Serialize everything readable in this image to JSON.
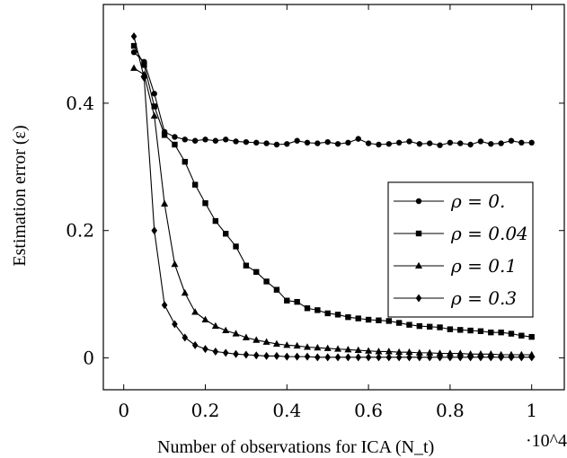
{
  "chart_data": {
    "type": "line",
    "xlabel": "Number of observations for ICA (N_t)",
    "x_scale_label": "·10^4",
    "ylabel": "Estimation error (ε)",
    "xlim": [
      -0.05,
      1.08
    ],
    "ylim": [
      -0.05,
      0.555
    ],
    "x_ticks": [
      0,
      0.2,
      0.4,
      0.6,
      0.8,
      1
    ],
    "x_tick_labels": [
      "0",
      "0.2",
      "0.4",
      "0.6",
      "0.8",
      "1"
    ],
    "y_ticks": [
      0,
      0.2,
      0.4
    ],
    "y_tick_labels": [
      "0",
      "0.2",
      "0.4"
    ],
    "grid": false,
    "legend_position": "right-center",
    "x": [
      0.025,
      0.05,
      0.075,
      0.1,
      0.125,
      0.15,
      0.175,
      0.2,
      0.225,
      0.25,
      0.275,
      0.3,
      0.325,
      0.35,
      0.375,
      0.4,
      0.425,
      0.45,
      0.475,
      0.5,
      0.525,
      0.55,
      0.575,
      0.6,
      0.625,
      0.65,
      0.675,
      0.7,
      0.725,
      0.75,
      0.775,
      0.8,
      0.825,
      0.85,
      0.875,
      0.9,
      0.925,
      0.95,
      0.975,
      1.0
    ],
    "series": [
      {
        "name": "ρ = 0.",
        "marker": "circle",
        "values": [
          0.48,
          0.465,
          0.415,
          0.355,
          0.347,
          0.343,
          0.341,
          0.343,
          0.341,
          0.343,
          0.34,
          0.339,
          0.338,
          0.337,
          0.335,
          0.336,
          0.341,
          0.338,
          0.337,
          0.339,
          0.336,
          0.338,
          0.344,
          0.337,
          0.335,
          0.336,
          0.338,
          0.34,
          0.336,
          0.337,
          0.334,
          0.338,
          0.337,
          0.335,
          0.34,
          0.336,
          0.337,
          0.341,
          0.338,
          0.338
        ]
      },
      {
        "name": "ρ = 0.04",
        "marker": "square",
        "values": [
          0.49,
          0.46,
          0.395,
          0.35,
          0.335,
          0.308,
          0.272,
          0.243,
          0.215,
          0.195,
          0.175,
          0.145,
          0.135,
          0.12,
          0.107,
          0.09,
          0.088,
          0.078,
          0.075,
          0.07,
          0.068,
          0.064,
          0.062,
          0.06,
          0.059,
          0.058,
          0.055,
          0.052,
          0.05,
          0.049,
          0.048,
          0.045,
          0.044,
          0.043,
          0.042,
          0.04,
          0.04,
          0.038,
          0.035,
          0.033
        ]
      },
      {
        "name": "ρ = 0.1",
        "marker": "triangle",
        "values": [
          0.455,
          0.445,
          0.38,
          0.242,
          0.147,
          0.102,
          0.072,
          0.06,
          0.05,
          0.043,
          0.038,
          0.032,
          0.028,
          0.025,
          0.022,
          0.02,
          0.019,
          0.017,
          0.016,
          0.015,
          0.014,
          0.013,
          0.012,
          0.011,
          0.01,
          0.01,
          0.009,
          0.009,
          0.008,
          0.008,
          0.007,
          0.007,
          0.007,
          0.006,
          0.006,
          0.006,
          0.005,
          0.005,
          0.005,
          0.005
        ]
      },
      {
        "name": "ρ = 0.3",
        "marker": "diamond",
        "values": [
          0.505,
          0.44,
          0.2,
          0.083,
          0.053,
          0.032,
          0.02,
          0.014,
          0.01,
          0.008,
          0.006,
          0.005,
          0.004,
          0.003,
          0.003,
          0.002,
          0.002,
          0.002,
          0.001,
          0.001,
          0.001,
          0.001,
          0.001,
          0.001,
          0.001,
          0.001,
          0.001,
          0.001,
          0.001,
          0.001,
          0.001,
          0.001,
          0.001,
          0.001,
          0.001,
          0.001,
          0.001,
          0.001,
          0.001,
          0.001
        ]
      }
    ]
  }
}
